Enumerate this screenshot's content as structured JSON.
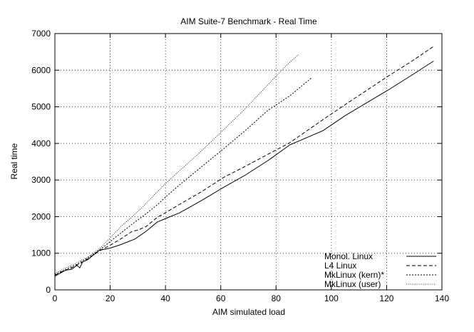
{
  "chart_data": {
    "type": "line",
    "title": "AIM Suite-7 Benchmark - Real Time",
    "xlabel": "AIM simulated load",
    "ylabel": "Real time",
    "xlim": [
      0,
      140
    ],
    "ylim": [
      0,
      7000
    ],
    "xticks": [
      0,
      20,
      40,
      60,
      80,
      100,
      120,
      140
    ],
    "yticks": [
      0,
      1000,
      2000,
      3000,
      4000,
      5000,
      6000,
      7000
    ],
    "grid": true,
    "legend_position": "bottom-right",
    "series": [
      {
        "name": "Monol. Linux",
        "style": "solid",
        "x": [
          0,
          2,
          4,
          6,
          8,
          9,
          10,
          12,
          16,
          20,
          24,
          29,
          33,
          37,
          41,
          45,
          53,
          61,
          69,
          77,
          85,
          97,
          105,
          113,
          121,
          129,
          137
        ],
        "y": [
          370,
          460,
          540,
          560,
          670,
          600,
          760,
          830,
          1080,
          1140,
          1240,
          1390,
          1600,
          1850,
          1980,
          2100,
          2440,
          2800,
          3140,
          3530,
          3960,
          4350,
          4760,
          5120,
          5480,
          5860,
          6250
        ]
      },
      {
        "name": "L4 Linux",
        "style": "dashed",
        "x": [
          0,
          2,
          4,
          6,
          8,
          10,
          12,
          16,
          20,
          24,
          28,
          30,
          33,
          37,
          41,
          45,
          53,
          61,
          69,
          77,
          85,
          97,
          105,
          113,
          121,
          129,
          137
        ],
        "y": [
          400,
          480,
          540,
          600,
          680,
          760,
          850,
          1060,
          1220,
          1400,
          1600,
          1630,
          1730,
          1980,
          2150,
          2330,
          2680,
          3070,
          3380,
          3700,
          4020,
          4650,
          5060,
          5460,
          5860,
          6240,
          6650
        ]
      },
      {
        "name": "MkLinux (kern)*",
        "style": "dotted",
        "x": [
          0,
          4,
          8,
          12,
          16,
          20,
          24,
          28,
          32,
          37,
          41,
          45,
          53,
          61,
          69,
          77,
          85,
          93
        ],
        "y": [
          420,
          560,
          700,
          880,
          1080,
          1320,
          1560,
          1800,
          2020,
          2320,
          2600,
          2860,
          3360,
          3850,
          4360,
          4900,
          5300,
          5800
        ]
      },
      {
        "name": "MkLinux (user)",
        "style": "fine-dotted",
        "x": [
          0,
          4,
          8,
          12,
          16,
          20,
          24,
          28,
          32,
          36,
          40,
          44,
          52,
          60,
          68,
          76,
          84,
          88
        ],
        "y": [
          450,
          600,
          740,
          900,
          1120,
          1420,
          1740,
          2000,
          2280,
          2600,
          2900,
          3180,
          3720,
          4300,
          4880,
          5520,
          6150,
          6420
        ]
      }
    ]
  }
}
